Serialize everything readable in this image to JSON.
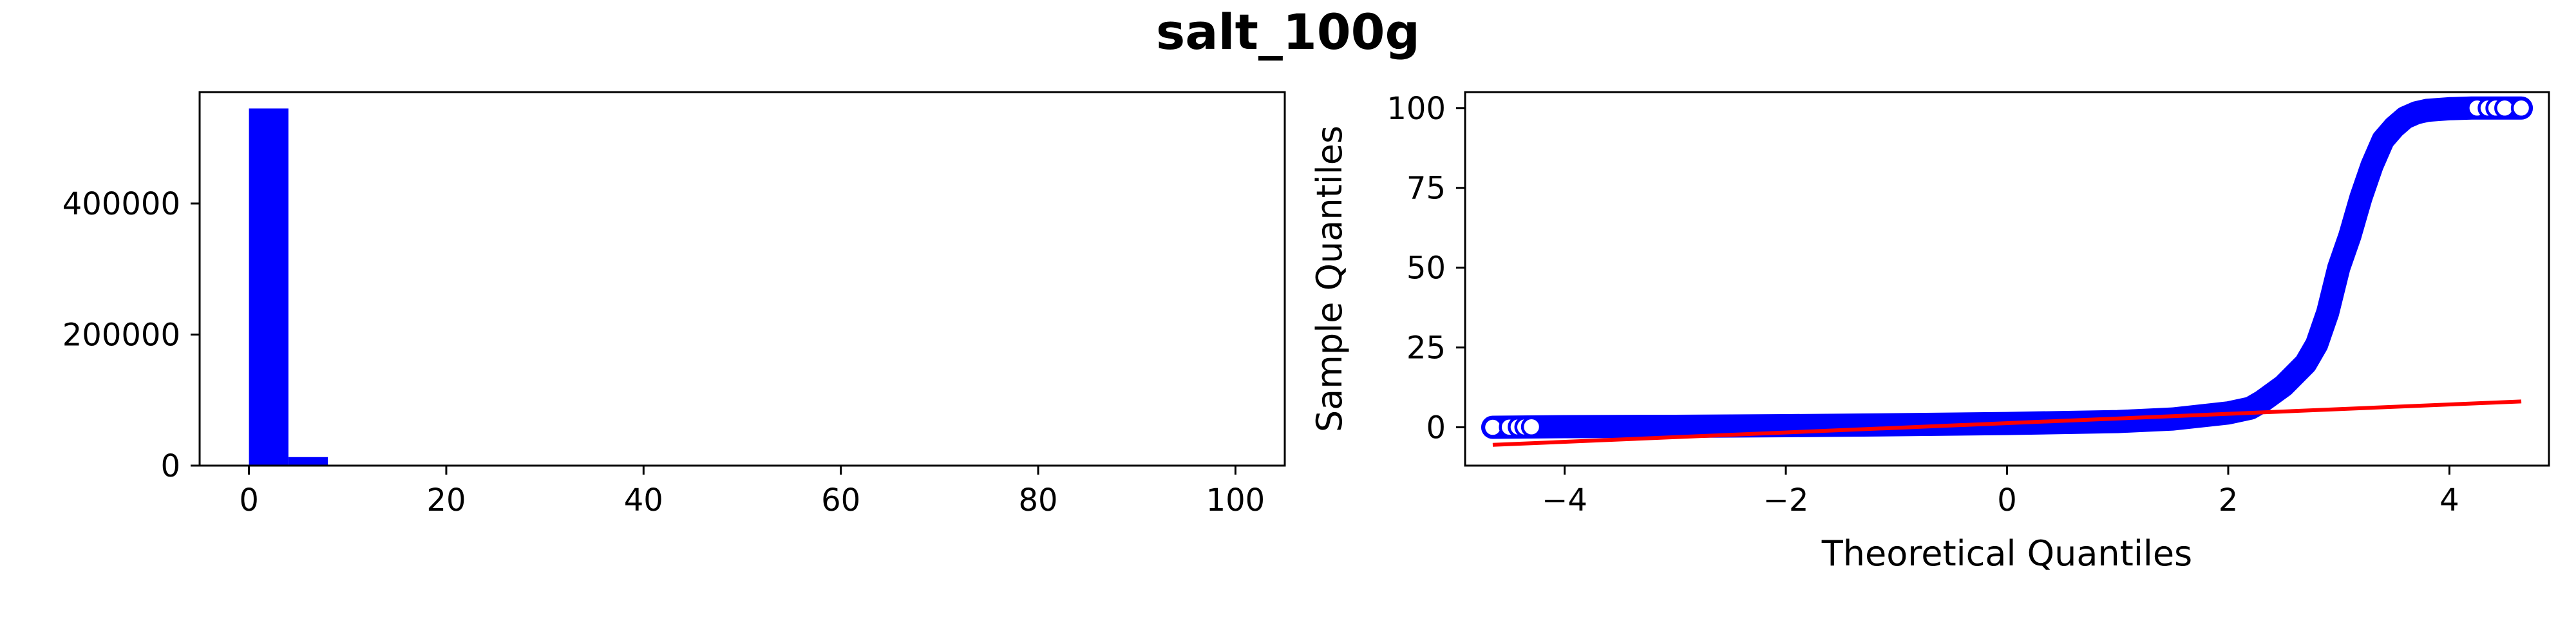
{
  "title": "salt_100g",
  "chart_data": [
    {
      "type": "bar",
      "subtype": "histogram",
      "title": "",
      "xlabel": "",
      "ylabel": "",
      "xlim": [
        -5,
        105
      ],
      "ylim": [
        0,
        570000
      ],
      "xticks": [
        0,
        20,
        40,
        60,
        80,
        100
      ],
      "yticks": [
        0,
        200000,
        400000
      ],
      "bin_width": 4,
      "bins": [
        {
          "x0": 0,
          "x1": 4,
          "count": 545000
        },
        {
          "x0": 4,
          "x1": 8,
          "count": 13000
        },
        {
          "x0": 8,
          "x1": 12,
          "count": 900
        },
        {
          "x0": 12,
          "x1": 16,
          "count": 300
        },
        {
          "x0": 16,
          "x1": 20,
          "count": 150
        }
      ],
      "color": "#0000ff",
      "grid": false
    },
    {
      "type": "scatter",
      "subtype": "qq-plot",
      "title": "",
      "xlabel": "Theoretical Quantiles",
      "ylabel": "Sample Quantiles",
      "xlim": [
        -4.9,
        4.9
      ],
      "ylim": [
        -12,
        105
      ],
      "xticks": [
        -4,
        -2,
        0,
        2,
        4
      ],
      "xtick_labels": [
        "−4",
        "−2",
        "0",
        "2",
        "4"
      ],
      "yticks": [
        0,
        25,
        50,
        75,
        100
      ],
      "sample_curve": {
        "x": [
          -4.65,
          -4.0,
          -3.0,
          -2.0,
          -1.0,
          0.0,
          1.0,
          1.5,
          2.0,
          2.2,
          2.3,
          2.5,
          2.7,
          2.8,
          2.9,
          3.0,
          3.1,
          3.15,
          3.2,
          3.3,
          3.4,
          3.5,
          3.6,
          3.7,
          3.8,
          4.0,
          4.2,
          4.65
        ],
        "y": [
          0.0,
          0.2,
          0.3,
          0.5,
          0.8,
          1.2,
          1.8,
          2.6,
          4.5,
          6.0,
          8.0,
          13.0,
          20.0,
          26.0,
          36.0,
          50.0,
          60.0,
          66.0,
          72.0,
          82.0,
          90.0,
          94.0,
          97.0,
          98.5,
          99.3,
          99.8,
          100.0,
          100.0
        ]
      },
      "outlier_points": {
        "x": [
          -4.65,
          -4.5,
          -4.42,
          -4.36,
          -4.3,
          4.25,
          4.35,
          4.42,
          4.5,
          4.65
        ],
        "y": [
          0.0,
          0.05,
          0.1,
          0.1,
          0.15,
          100.0,
          100.0,
          100.0,
          100.0,
          100.0
        ]
      },
      "reference_line": {
        "x": [
          -4.65,
          4.65
        ],
        "y": [
          -5.5,
          8.1
        ]
      },
      "point_color": "#0000ff",
      "line_color": "#ff0000",
      "grid": false
    }
  ]
}
